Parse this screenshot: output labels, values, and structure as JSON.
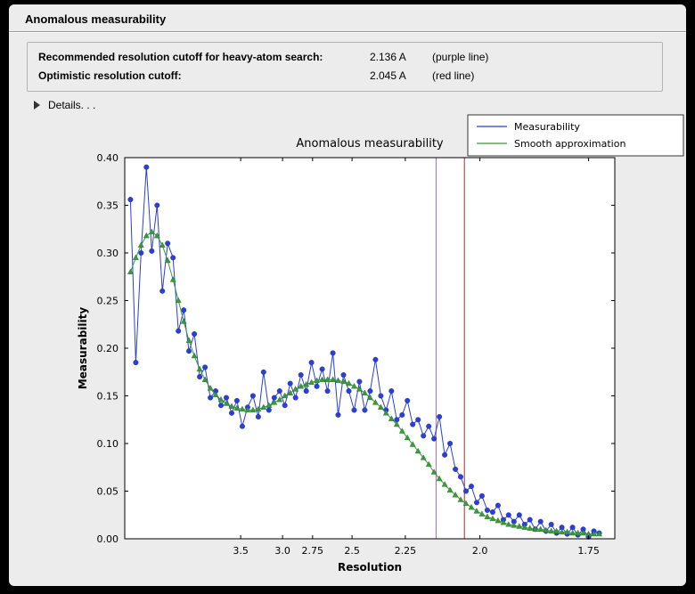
{
  "window": {
    "title": "Anomalous measurability"
  },
  "info": {
    "rows": [
      {
        "label": "Recommended resolution cutoff for heavy-atom search:",
        "value": "2.136 A",
        "note": "(purple line)"
      },
      {
        "label": "Optimistic resolution cutoff:",
        "value": "2.045 A",
        "note": "(red line)"
      }
    ]
  },
  "details_label": "Details. . .",
  "chart_data": {
    "type": "line",
    "title": "Anomalous measurability",
    "xlabel": "Resolution",
    "ylabel": "Measurability",
    "grid": false,
    "legend_position": "top-right",
    "x_axis": {
      "scale": "1/d^2",
      "range_s": [
        0.0,
        0.345
      ],
      "ticks_d": [
        3.5,
        3.0,
        2.75,
        2.5,
        2.25,
        2.0,
        1.75
      ],
      "tick_labels": [
        "3.5",
        "3.0",
        "2.75",
        "2.5",
        "2.25",
        "2.0",
        "1.75"
      ]
    },
    "y_axis": {
      "range": [
        0.0,
        0.4
      ],
      "ticks": [
        0.0,
        0.05,
        0.1,
        0.15,
        0.2,
        0.25,
        0.3,
        0.35,
        0.4
      ],
      "tick_labels": [
        "0.00",
        "0.05",
        "0.10",
        "0.15",
        "0.20",
        "0.25",
        "0.30",
        "0.35",
        "0.40"
      ]
    },
    "x_s": {
      "start": 0.004,
      "step": 0.00375,
      "count": 89
    },
    "vlines": [
      {
        "d": 2.136,
        "color": "#b064b0",
        "label": "purple line"
      },
      {
        "d": 2.045,
        "color": "#a52a2a",
        "label": "red line"
      }
    ],
    "series": [
      {
        "name": "Measurability",
        "color": "#2b3fd6",
        "marker": "circle",
        "values": [
          0.356,
          0.185,
          0.3,
          0.39,
          0.302,
          0.35,
          0.26,
          0.31,
          0.295,
          0.218,
          0.24,
          0.197,
          0.215,
          0.17,
          0.18,
          0.148,
          0.155,
          0.14,
          0.148,
          0.132,
          0.145,
          0.118,
          0.138,
          0.15,
          0.128,
          0.175,
          0.135,
          0.148,
          0.155,
          0.14,
          0.163,
          0.148,
          0.172,
          0.155,
          0.185,
          0.16,
          0.178,
          0.155,
          0.195,
          0.13,
          0.172,
          0.155,
          0.135,
          0.165,
          0.135,
          0.155,
          0.188,
          0.15,
          0.135,
          0.155,
          0.125,
          0.13,
          0.145,
          0.12,
          0.125,
          0.108,
          0.118,
          0.105,
          0.128,
          0.088,
          0.1,
          0.073,
          0.065,
          0.05,
          0.055,
          0.038,
          0.045,
          0.03,
          0.028,
          0.035,
          0.02,
          0.025,
          0.018,
          0.025,
          0.015,
          0.02,
          0.01,
          0.018,
          0.008,
          0.015,
          0.006,
          0.012,
          0.005,
          0.012,
          0.004,
          0.01,
          0.002,
          0.008,
          0.006
        ]
      },
      {
        "name": "Smooth approximation",
        "color": "#3a9a3a",
        "marker": "triangle",
        "values": [
          0.28,
          0.295,
          0.308,
          0.318,
          0.322,
          0.318,
          0.308,
          0.292,
          0.272,
          0.25,
          0.228,
          0.208,
          0.192,
          0.178,
          0.167,
          0.158,
          0.151,
          0.146,
          0.142,
          0.139,
          0.137,
          0.136,
          0.135,
          0.135,
          0.136,
          0.138,
          0.14,
          0.143,
          0.146,
          0.15,
          0.153,
          0.157,
          0.16,
          0.162,
          0.164,
          0.166,
          0.167,
          0.167,
          0.167,
          0.166,
          0.165,
          0.163,
          0.16,
          0.157,
          0.153,
          0.148,
          0.143,
          0.138,
          0.132,
          0.126,
          0.12,
          0.113,
          0.106,
          0.099,
          0.092,
          0.085,
          0.078,
          0.07,
          0.063,
          0.057,
          0.051,
          0.046,
          0.041,
          0.037,
          0.033,
          0.029,
          0.026,
          0.023,
          0.021,
          0.019,
          0.017,
          0.015,
          0.014,
          0.013,
          0.012,
          0.011,
          0.01,
          0.01,
          0.009,
          0.008,
          0.008,
          0.007,
          0.007,
          0.006,
          0.006,
          0.006,
          0.005,
          0.005,
          0.005
        ]
      }
    ]
  }
}
